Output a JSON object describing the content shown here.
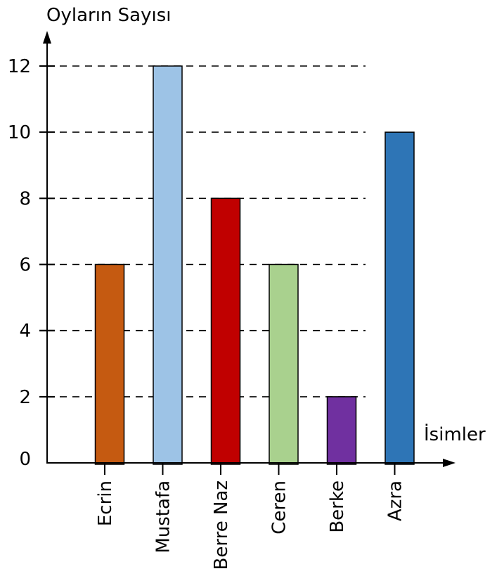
{
  "chart_data": {
    "type": "bar",
    "ylabel": "Oyların Sayısı",
    "xlabel": "İsimler",
    "categories": [
      "Ecrin",
      "Mustafa",
      "Berre Naz",
      "Ceren",
      "Berke",
      "Azra"
    ],
    "values": [
      6,
      12,
      8,
      6,
      2,
      10
    ],
    "colors": [
      "#C55A11",
      "#9DC3E6",
      "#C00000",
      "#A9D18E",
      "#7030A0",
      "#2E75B6"
    ],
    "yticks": [
      0,
      2,
      4,
      6,
      8,
      10,
      12
    ],
    "ylim": [
      0,
      12
    ],
    "grid": "dashed horizontal"
  }
}
